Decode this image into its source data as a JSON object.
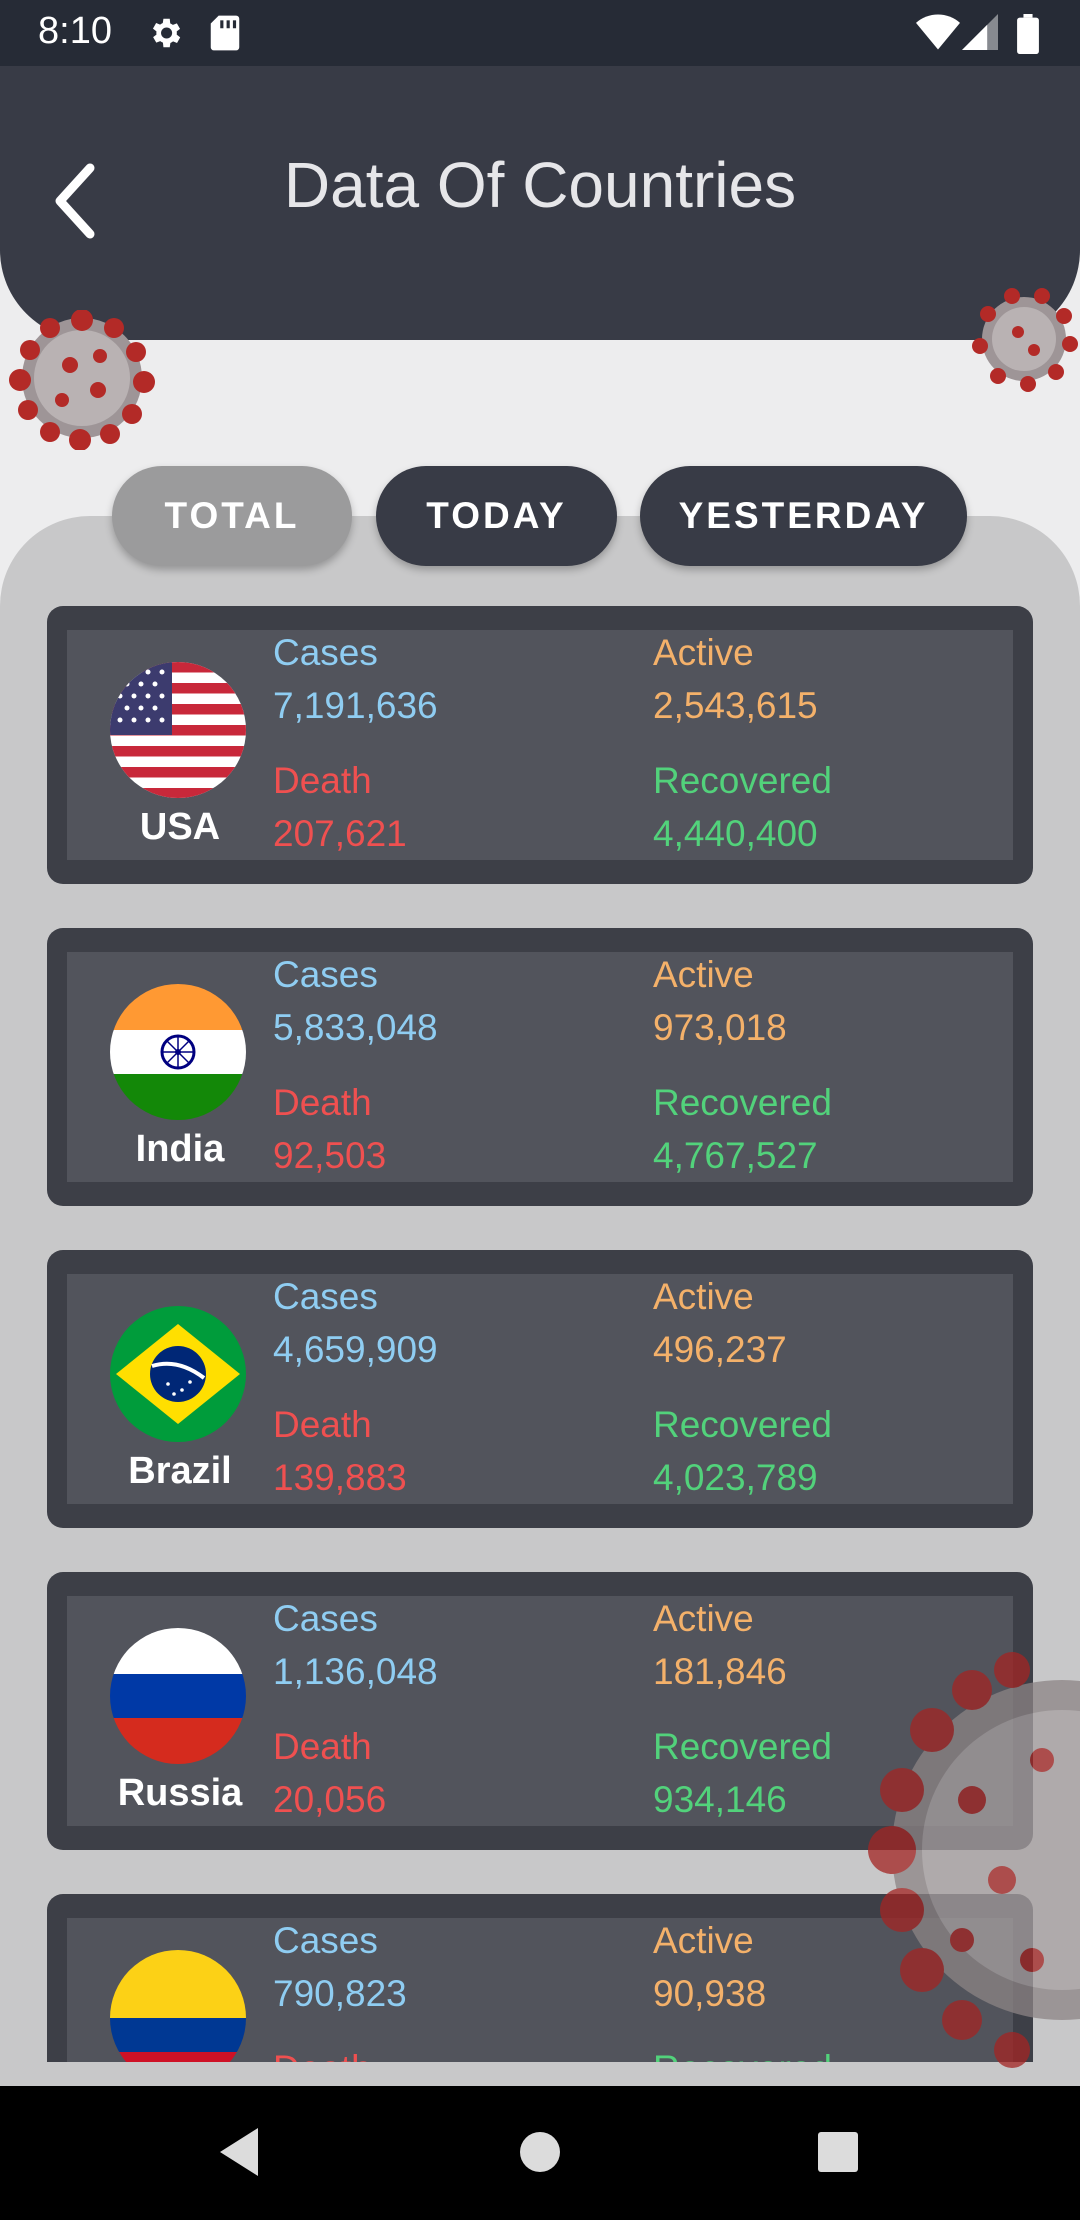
{
  "status_bar": {
    "time": "8:10"
  },
  "header": {
    "title": "Data Of Countries"
  },
  "tabs": [
    {
      "label": "TOTAL",
      "active": true
    },
    {
      "label": "TODAY",
      "active": false
    },
    {
      "label": "YESTERDAY",
      "active": false
    }
  ],
  "labels": {
    "cases": "Cases",
    "active": "Active",
    "death": "Death",
    "recovered": "Recovered"
  },
  "countries": [
    {
      "name": "USA",
      "flag": "usa-flag-icon",
      "cases": "7,191,636",
      "active": "2,543,615",
      "death": "207,621",
      "recovered": "4,440,400"
    },
    {
      "name": "India",
      "flag": "india-flag-icon",
      "cases": "5,833,048",
      "active": "973,018",
      "death": "92,503",
      "recovered": "4,767,527"
    },
    {
      "name": "Brazil",
      "flag": "brazil-flag-icon",
      "cases": "4,659,909",
      "active": "496,237",
      "death": "139,883",
      "recovered": "4,023,789"
    },
    {
      "name": "Russia",
      "flag": "russia-flag-icon",
      "cases": "1,136,048",
      "active": "181,846",
      "death": "20,056",
      "recovered": "934,146"
    },
    {
      "name": "",
      "flag": "colombia-flag-icon",
      "cases": "790,823",
      "active": "90,938",
      "death": "",
      "recovered": ""
    }
  ],
  "colors": {
    "cases": "#8fcdf2",
    "active": "#f4b16a",
    "death": "#ef5050",
    "recovered": "#52d27b",
    "header_bg": "#383b46",
    "card_bg": "#3d3f47"
  }
}
